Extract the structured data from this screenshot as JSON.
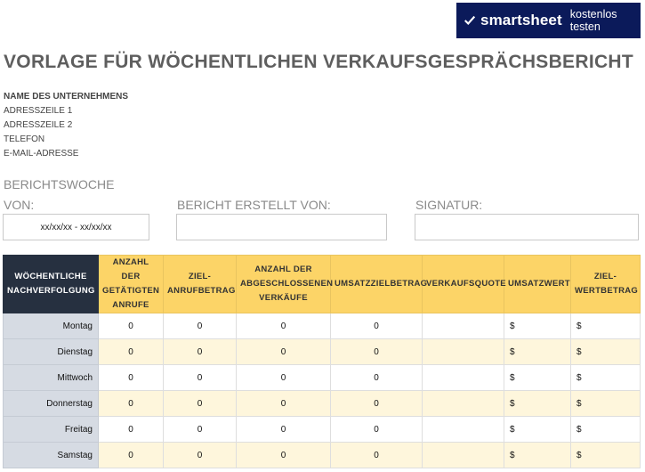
{
  "banner": {
    "brand": "smartsheet",
    "cta": "kostenlos testen",
    "icon": "check-logo-icon"
  },
  "title": "VORLAGE FÜR WÖCHENTLICHEN VERKAUFSGESPRÄCHSBERICHT",
  "company": {
    "name": "NAME DES UNTERNEHMENS",
    "address1": "ADRESSZEILE 1",
    "address2": "ADRESSZEILE 2",
    "phone": "TELEFON",
    "email": "E-MAIL-ADRESSE"
  },
  "report": {
    "week_label": "BERICHTSWOCHE",
    "from_label": "VON:",
    "from_value": "xx/xx/xx - xx/xx/xx",
    "created_by_label": "BERICHT ERSTELLT VON:",
    "created_by_value": "",
    "signature_label": "SIGNATUR:",
    "signature_value": ""
  },
  "table": {
    "headers": [
      "WÖCHENTLICHE NACHVERFOLGUNG",
      "ANZAHL DER GETÄTIGTEN ANRUFE",
      "ZIEL-ANRUFBETRAG",
      "ANZAHL DER ABGESCHLOSSENEN VERKÄUFE",
      "UMSATZZIELBETRAG",
      "VERKAUFSQUOTE",
      "UMSATZWERT",
      "ZIEL-WERTBETRAG"
    ],
    "rows": [
      [
        "Montag",
        "0",
        "0",
        "0",
        "0",
        "",
        "$",
        "$"
      ],
      [
        "Dienstag",
        "0",
        "0",
        "0",
        "0",
        "",
        "$",
        "$"
      ],
      [
        "Mittwoch",
        "0",
        "0",
        "0",
        "0",
        "",
        "$",
        "$"
      ],
      [
        "Donnerstag",
        "0",
        "0",
        "0",
        "0",
        "",
        "$",
        "$"
      ],
      [
        "Freitag",
        "0",
        "0",
        "0",
        "0",
        "",
        "$",
        "$"
      ],
      [
        "Samstag",
        "0",
        "0",
        "0",
        "0",
        "",
        "$",
        "$"
      ]
    ]
  },
  "colors": {
    "banner": "#0b1a5a",
    "header_yellow": "#fcd467",
    "header_dark": "#263040",
    "day_column": "#d6dbe3",
    "alt_row": "#fef6dc"
  }
}
